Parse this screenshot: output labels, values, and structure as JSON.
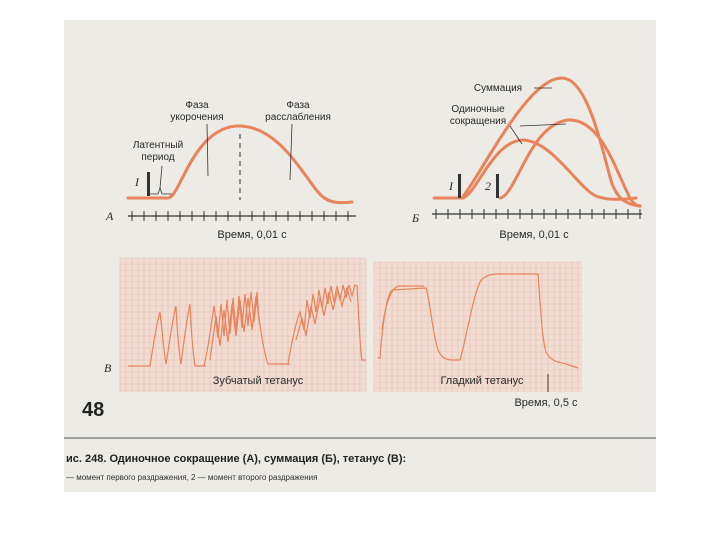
{
  "panel_a": {
    "letter": "А",
    "label_phase_shortening": [
      "Фаза",
      "укорочения"
    ],
    "label_phase_relaxation": [
      "Фаза",
      "расслабления"
    ],
    "label_latent": [
      "Латентный",
      "период"
    ],
    "stim_mark": "I",
    "time_label": "Время, 0,01 с"
  },
  "panel_b": {
    "letter": "Б",
    "label_summation": "Суммация",
    "label_single": [
      "Одиночные",
      "сокращения"
    ],
    "stim_mark_1": "I",
    "stim_mark_2": "2",
    "time_label": "Время, 0,01 с"
  },
  "panel_c": {
    "letter": "В",
    "label_jagged": "Зубчатый тетанус",
    "label_smooth": "Гладкий тетанус",
    "time_label": "Время, 0,5 с"
  },
  "page_number": "48",
  "caption": "ис. 248. Одиночное сокращение (А), суммация (Б), тетанус (В):",
  "caption_note": "— момент первого раздражения, 2 — момент второго раздражения",
  "colors": {
    "curve": "#e9835a",
    "grid_bg": "#f1ddd4",
    "grid_line": "#e6bfae"
  }
}
